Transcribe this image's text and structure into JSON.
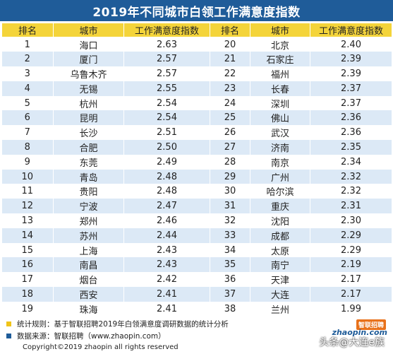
{
  "title": "2019年不同城市白领工作满意度指数",
  "headers": [
    "排名",
    "城市",
    "工作满意度指数",
    "排名",
    "城市",
    "工作满意度指数"
  ],
  "rows": [
    {
      "r1": "1",
      "c1": "海口",
      "s1": "2.63",
      "r2": "20",
      "c2": "北京",
      "s2": "2.40"
    },
    {
      "r1": "2",
      "c1": "厦门",
      "s1": "2.57",
      "r2": "21",
      "c2": "石家庄",
      "s2": "2.39"
    },
    {
      "r1": "3",
      "c1": "乌鲁木齐",
      "s1": "2.57",
      "r2": "22",
      "c2": "福州",
      "s2": "2.39"
    },
    {
      "r1": "4",
      "c1": "无锡",
      "s1": "2.55",
      "r2": "23",
      "c2": "长春",
      "s2": "2.37"
    },
    {
      "r1": "5",
      "c1": "杭州",
      "s1": "2.54",
      "r2": "24",
      "c2": "深圳",
      "s2": "2.37"
    },
    {
      "r1": "6",
      "c1": "昆明",
      "s1": "2.54",
      "r2": "25",
      "c2": "佛山",
      "s2": "2.36"
    },
    {
      "r1": "7",
      "c1": "长沙",
      "s1": "2.51",
      "r2": "26",
      "c2": "武汉",
      "s2": "2.36"
    },
    {
      "r1": "8",
      "c1": "合肥",
      "s1": "2.50",
      "r2": "27",
      "c2": "济南",
      "s2": "2.35"
    },
    {
      "r1": "9",
      "c1": "东莞",
      "s1": "2.49",
      "r2": "28",
      "c2": "南京",
      "s2": "2.34"
    },
    {
      "r1": "10",
      "c1": "青岛",
      "s1": "2.48",
      "r2": "29",
      "c2": "广州",
      "s2": "2.32"
    },
    {
      "r1": "11",
      "c1": "贵阳",
      "s1": "2.48",
      "r2": "30",
      "c2": "哈尔滨",
      "s2": "2.32"
    },
    {
      "r1": "12",
      "c1": "宁波",
      "s1": "2.47",
      "r2": "31",
      "c2": "重庆",
      "s2": "2.31"
    },
    {
      "r1": "13",
      "c1": "郑州",
      "s1": "2.46",
      "r2": "32",
      "c2": "沈阳",
      "s2": "2.30"
    },
    {
      "r1": "14",
      "c1": "苏州",
      "s1": "2.44",
      "r2": "33",
      "c2": "成都",
      "s2": "2.29"
    },
    {
      "r1": "15",
      "c1": "上海",
      "s1": "2.43",
      "r2": "34",
      "c2": "太原",
      "s2": "2.29"
    },
    {
      "r1": "16",
      "c1": "南昌",
      "s1": "2.43",
      "r2": "35",
      "c2": "南宁",
      "s2": "2.19"
    },
    {
      "r1": "17",
      "c1": "烟台",
      "s1": "2.42",
      "r2": "36",
      "c2": "天津",
      "s2": "2.17"
    },
    {
      "r1": "18",
      "c1": "西安",
      "s1": "2.41",
      "r2": "37",
      "c2": "大连",
      "s2": "2.17"
    },
    {
      "r1": "19",
      "c1": "珠海",
      "s1": "2.41",
      "r2": "38",
      "c2": "兰州",
      "s2": "1.99"
    }
  ],
  "footer": {
    "note1": "统计规则：基于智联招聘2019年白领满意度调研数据的统计分析",
    "note2": "数据来源：智联招聘（www.zhaopin.com）",
    "copyright": "Copyright©2019 zhaopin all rights reserved",
    "logo_badge": "智联招聘",
    "logo_main": "zhaopin.com",
    "watermark": "头条@大连e族"
  },
  "colors": {
    "title_bg": "#1f5c99",
    "header_bg": "#f4d43a",
    "stripe": "#dce9f6",
    "note1_marker": "#f0c419",
    "note2_marker": "#1f5c99"
  }
}
